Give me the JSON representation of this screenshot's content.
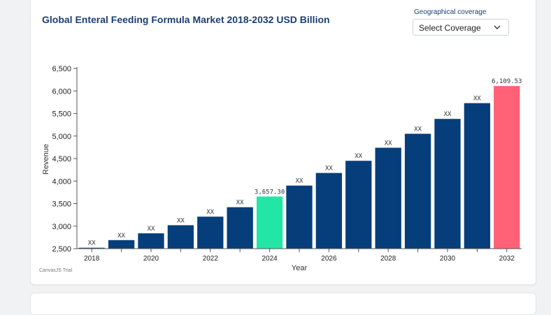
{
  "page": {
    "title": "Global Enteral Feeding Formula Market 2018-2032 USD Billion",
    "geo_label": "Geographical coverage",
    "select_value": "Select Coverage",
    "chevron_icon": "chevron-down-icon",
    "watermark": "CanvasJS Trial"
  },
  "chart_data": {
    "type": "bar",
    "title": "Global Enteral Feeding Formula Market 2018-2032 USD Billion",
    "xlabel": "Year",
    "ylabel": "Revenue",
    "ylim": [
      2500,
      6500
    ],
    "yticks": [
      2500,
      3000,
      3500,
      4000,
      4500,
      5000,
      5500,
      6000,
      6500
    ],
    "ytick_labels": [
      "2,500",
      "3,000",
      "3,500",
      "4,000",
      "4,500",
      "5,000",
      "5,500",
      "6,000",
      "6,500"
    ],
    "categories": [
      "2018",
      "2019",
      "2020",
      "2021",
      "2022",
      "2023",
      "2024",
      "2025",
      "2026",
      "2027",
      "2028",
      "2029",
      "2030",
      "2031",
      "2032"
    ],
    "xtick_labels": [
      "2018",
      "",
      "2020",
      "",
      "2022",
      "",
      "2024",
      "",
      "2026",
      "",
      "2028",
      "",
      "2030",
      "",
      "2032"
    ],
    "values": [
      2520,
      2690,
      2840,
      3020,
      3210,
      3420,
      3657.3,
      3900,
      4180,
      4450,
      4740,
      5050,
      5380,
      5730,
      6109.53
    ],
    "data_labels": [
      "XX",
      "XX",
      "XX",
      "XX",
      "XX",
      "XX",
      "3,657.30",
      "XX",
      "XX",
      "XX",
      "XX",
      "XX",
      "XX",
      "XX",
      "6,109.53"
    ],
    "colors": [
      "#053e7b",
      "#053e7b",
      "#053e7b",
      "#053e7b",
      "#053e7b",
      "#053e7b",
      "#22e6a6",
      "#053e7b",
      "#053e7b",
      "#053e7b",
      "#053e7b",
      "#053e7b",
      "#053e7b",
      "#053e7b",
      "#ff6177"
    ],
    "grid": false,
    "legend": "none"
  }
}
